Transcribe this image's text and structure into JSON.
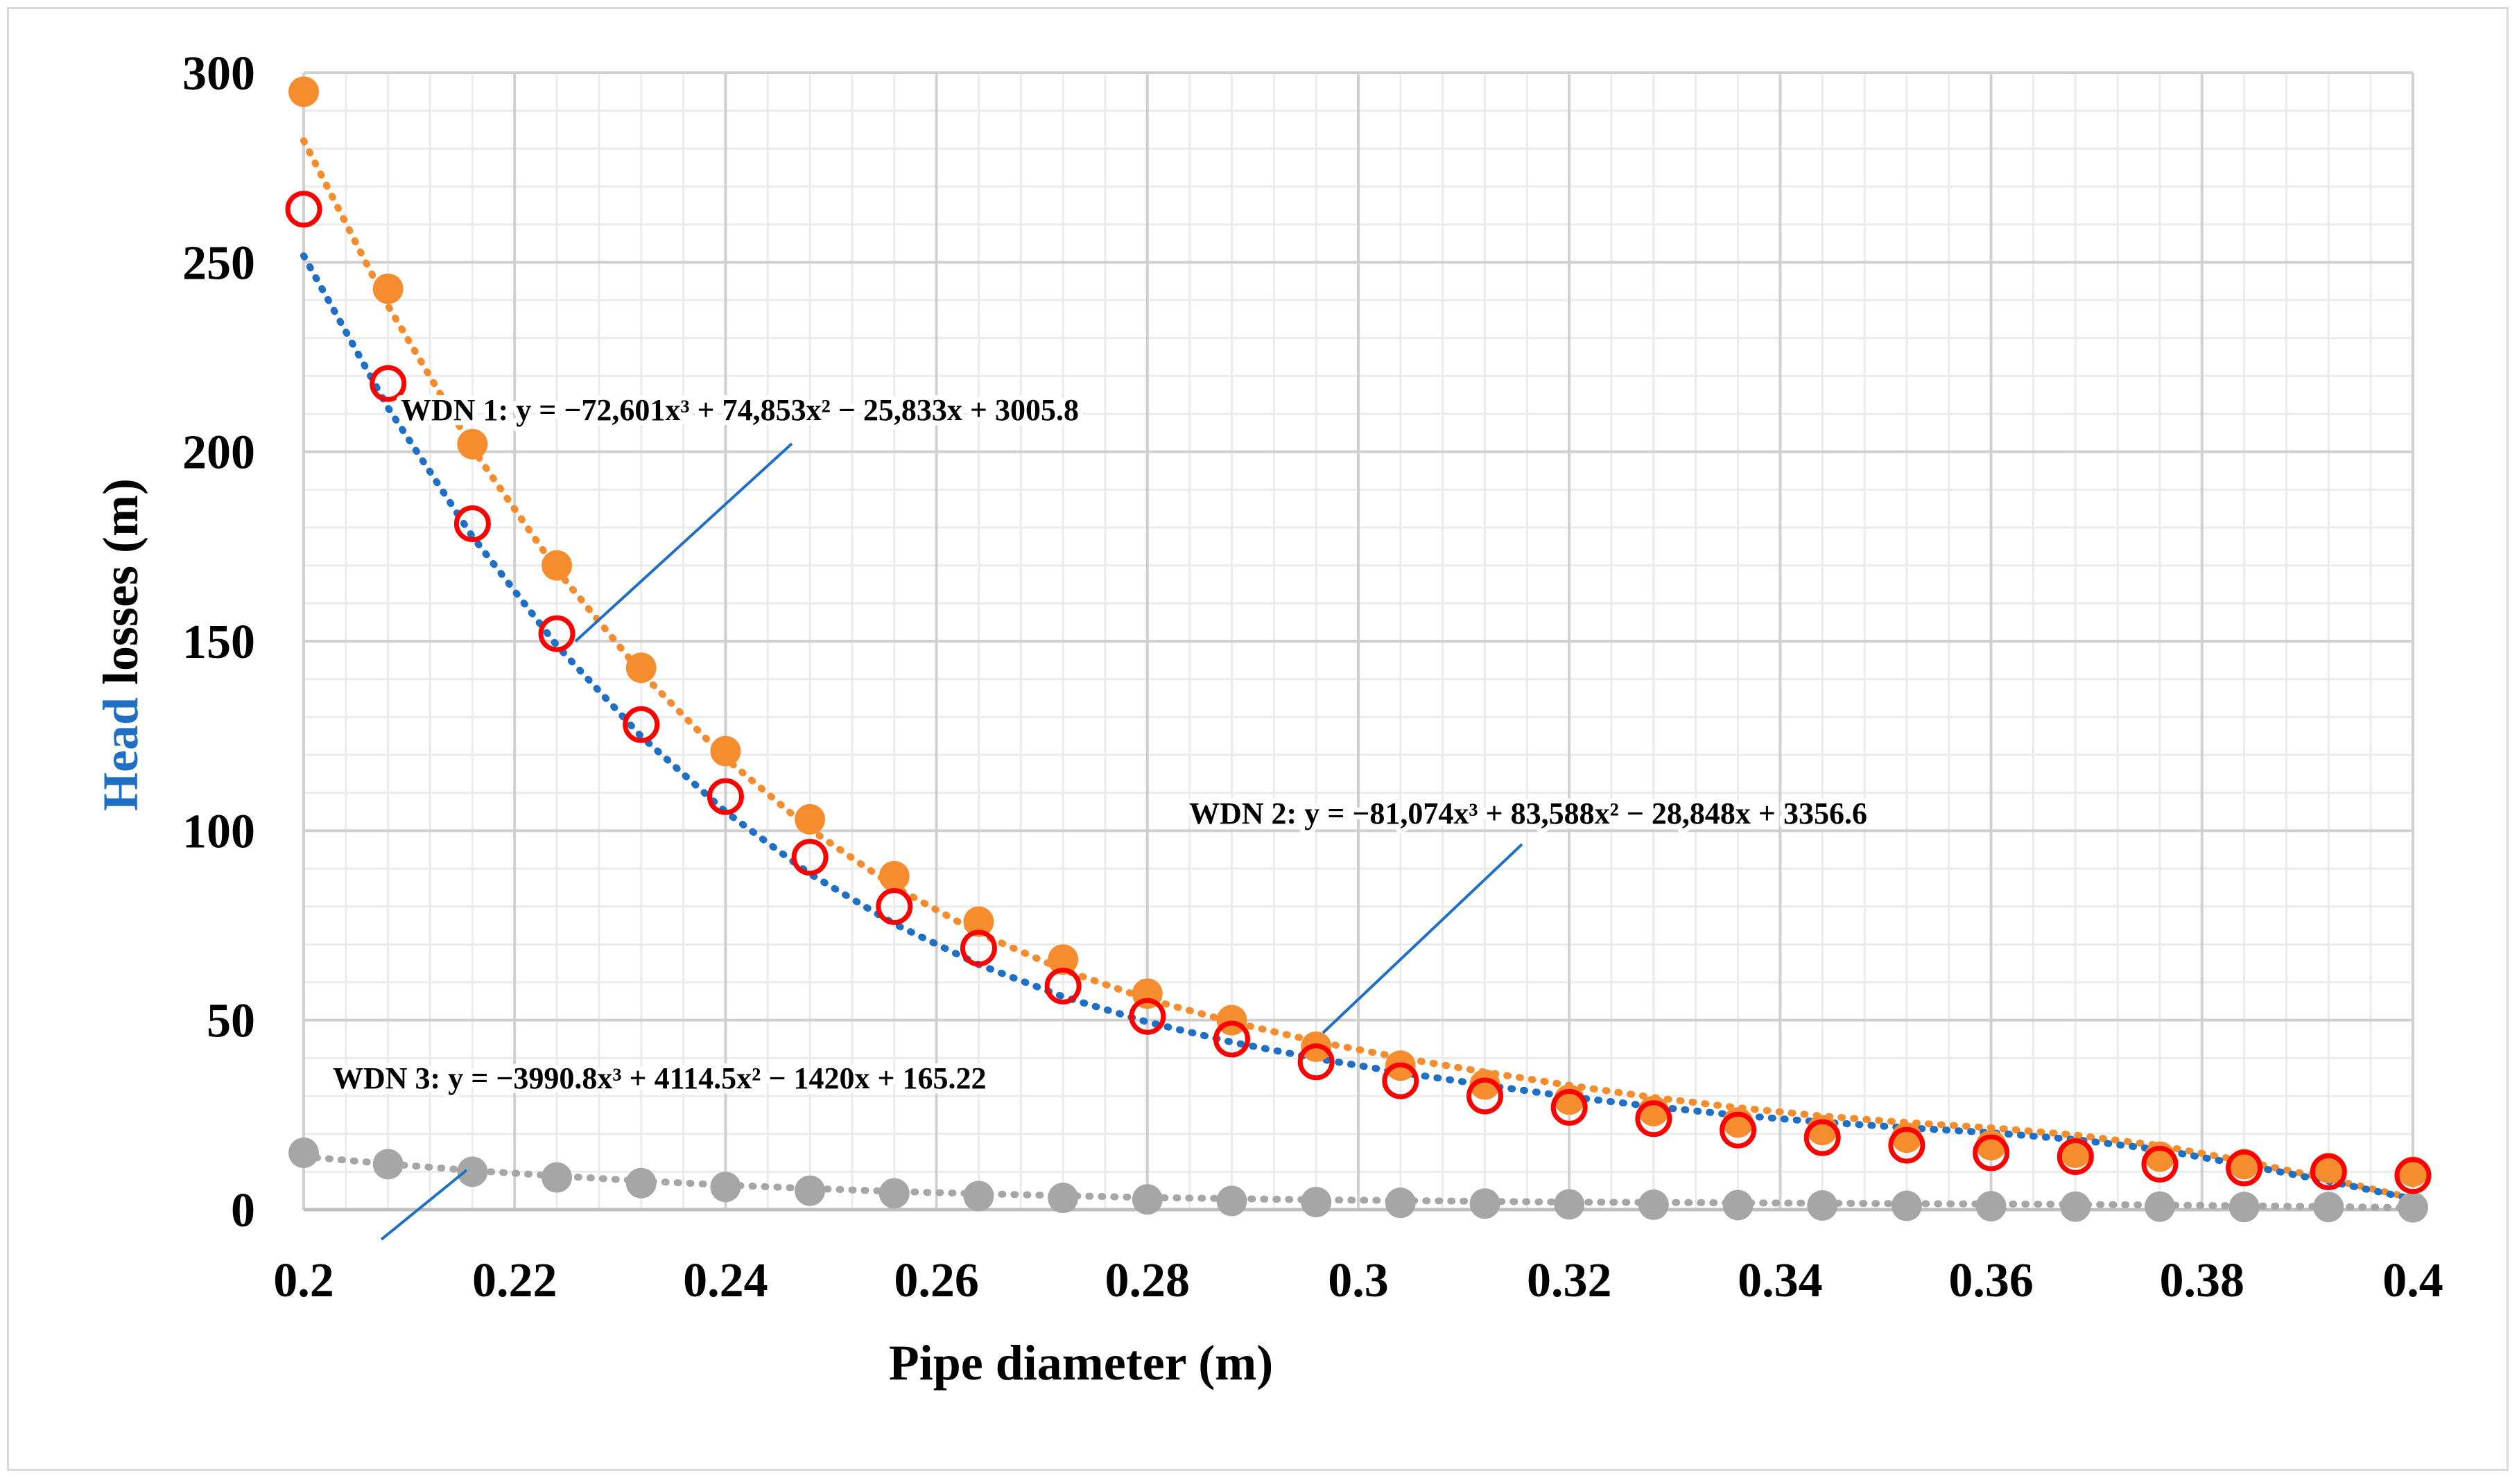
{
  "chart_data": {
    "type": "scatter",
    "xlabel": "Pipe diameter (m)",
    "ylabel_parts": {
      "highlight": "Head",
      "rest": " losses (m)"
    },
    "xlim": [
      0.2,
      0.4
    ],
    "ylim": [
      0,
      300
    ],
    "xticks": [
      0.2,
      0.22,
      0.24,
      0.26,
      0.28,
      0.3,
      0.32,
      0.34,
      0.36,
      0.38,
      0.4
    ],
    "xtick_labels": [
      "0.2",
      "0.22",
      "0.24",
      "0.26",
      "0.28",
      "0.3",
      "0.32",
      "0.34",
      "0.36",
      "0.38",
      "0.4"
    ],
    "yticks": [
      0,
      50,
      100,
      150,
      200,
      250,
      300
    ],
    "ytick_labels": [
      "0",
      "50",
      "100",
      "150",
      "200",
      "250",
      "300"
    ],
    "x": [
      0.2,
      0.208,
      0.216,
      0.224,
      0.232,
      0.24,
      0.248,
      0.256,
      0.264,
      0.272,
      0.28,
      0.288,
      0.296,
      0.304,
      0.312,
      0.32,
      0.328,
      0.336,
      0.344,
      0.352,
      0.36,
      0.368,
      0.376,
      0.384,
      0.392,
      0.4
    ],
    "series": [
      {
        "name": "WDN 1",
        "marker": "open-circle",
        "color": "#ff0000",
        "trend_color": "#1f6fc5",
        "values": [
          264,
          218,
          181,
          152,
          128,
          109,
          93,
          80,
          69,
          59,
          51,
          45,
          39,
          34,
          30,
          27,
          24,
          21,
          19,
          17,
          15,
          14,
          12,
          11,
          10,
          9
        ],
        "trend": [
          251.7,
          211.6,
          177.6,
          148.9,
          124.9,
          105.0,
          88.6,
          75.4,
          64.7,
          56.2,
          49.5,
          44.2,
          39.9,
          36.2,
          32.9,
          29.8,
          27.2,
          24.9,
          23.1,
          21.6,
          20.3,
          18.5,
          15.8,
          11.8,
          7.5,
          2.8
        ]
      },
      {
        "name": "WDN 2",
        "marker": "filled-circle",
        "color": "#f58d2e",
        "trend_color": "#f58d2e",
        "values": [
          295,
          243,
          202,
          170,
          143,
          121,
          103,
          88,
          76,
          66,
          57,
          50,
          43,
          38,
          33,
          29,
          26,
          23,
          21,
          19,
          17,
          15,
          14,
          12,
          11,
          10
        ],
        "trend": [
          282.1,
          238.5,
          200.9,
          168.8,
          141.7,
          119.1,
          100.4,
          85.2,
          73.0,
          63.3,
          55.6,
          49.5,
          44.4,
          40.1,
          36.3,
          32.8,
          29.6,
          26.9,
          24.7,
          23.0,
          21.6,
          19.7,
          16.9,
          12.8,
          8.1,
          3.0
        ]
      },
      {
        "name": "WDN 3",
        "marker": "filled-circle",
        "color": "#a6a6a6",
        "trend_color": "#a6a6a6",
        "values": [
          15,
          12,
          10,
          8.5,
          7,
          6,
          5,
          4.3,
          3.6,
          3.1,
          2.7,
          2.3,
          2.0,
          1.8,
          1.6,
          1.4,
          1.3,
          1.2,
          1.1,
          1.0,
          0.9,
          0.8,
          0.8,
          0.7,
          0.7,
          0.6
        ],
        "trend": [
          14.0,
          12.1,
          10.3,
          8.9,
          7.6,
          6.5,
          5.6,
          4.8,
          4.2,
          3.7,
          3.2,
          2.9,
          2.6,
          2.4,
          2.2,
          2.0,
          1.9,
          1.8,
          1.7,
          1.6,
          1.5,
          1.4,
          1.2,
          1.0,
          0.8,
          0.5
        ]
      }
    ],
    "annotations": [
      {
        "series": "WDN 1",
        "text": "WDN 1: y = −72,601x³ + 74,853x² − 25,833x + 3005.8"
      },
      {
        "series": "WDN 2",
        "text": "WDN 2: y = −81,074x³ + 83,588x² − 28,848x + 3356.6"
      },
      {
        "series": "WDN 3",
        "text": "WDN 3: y = −3990.8x³ + 4114.5x² − 1420x + 165.22"
      }
    ],
    "colors": {
      "ylabel_highlight": "#1f6fc5",
      "grid_major": "#d0d0d0",
      "grid_minor": "#ebebeb",
      "leader_line": "#1f6fc5"
    },
    "grid": true
  }
}
